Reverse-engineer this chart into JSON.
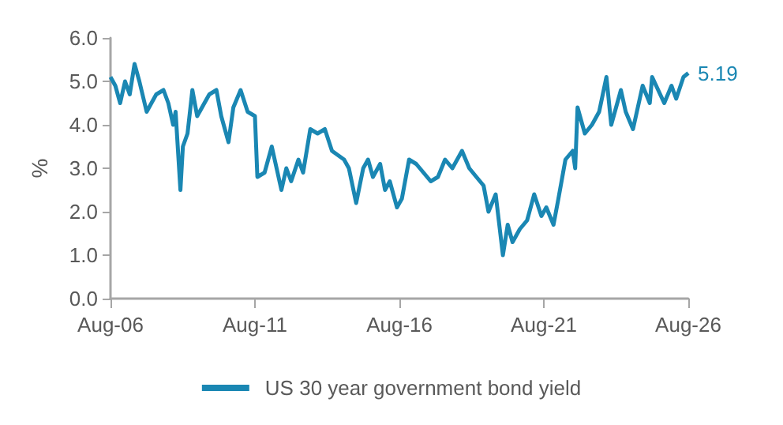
{
  "chart_data": {
    "type": "line",
    "ylabel": "%",
    "x": [
      "2006-08",
      "2006-10",
      "2006-12",
      "2007-02",
      "2007-04",
      "2007-06",
      "2007-08",
      "2007-11",
      "2008-03",
      "2008-06",
      "2008-08",
      "2008-10",
      "2008-11",
      "2009-01",
      "2009-02",
      "2009-04",
      "2009-06",
      "2009-08",
      "2009-10",
      "2010-01",
      "2010-04",
      "2010-06",
      "2010-09",
      "2010-11",
      "2011-02",
      "2011-05",
      "2011-08",
      "2011-09",
      "2011-12",
      "2012-03",
      "2012-05",
      "2012-07",
      "2012-09",
      "2012-11",
      "2013-02",
      "2013-04",
      "2013-07",
      "2013-10",
      "2014-01",
      "2014-04",
      "2014-09",
      "2014-11",
      "2015-02",
      "2015-05",
      "2015-07",
      "2015-09",
      "2015-12",
      "2016-02",
      "2016-04",
      "2016-07",
      "2016-09",
      "2016-12",
      "2017-03",
      "2017-06",
      "2017-09",
      "2017-12",
      "2018-03",
      "2018-06",
      "2018-10",
      "2019-01",
      "2019-04",
      "2019-07",
      "2019-09",
      "2019-12",
      "2020-03",
      "2020-05",
      "2020-07",
      "2020-10",
      "2021-01",
      "2021-04",
      "2021-07",
      "2021-09",
      "2021-12",
      "2022-02",
      "2022-05",
      "2022-08",
      "2022-09",
      "2022-10",
      "2023-01",
      "2023-04",
      "2023-07",
      "2023-10",
      "2023-12",
      "2024-04",
      "2024-06",
      "2024-09",
      "2025-01",
      "2025-04",
      "2025-05",
      "2025-10",
      "2026-01",
      "2026-03",
      "2026-06",
      "2026-08"
    ],
    "series": [
      {
        "name": "US 30 year government bond yield",
        "color": "#1a87b3",
        "values": [
          5.1,
          4.9,
          4.5,
          5.0,
          4.7,
          5.4,
          5.0,
          4.3,
          4.7,
          4.8,
          4.5,
          4.0,
          4.3,
          2.5,
          3.5,
          3.8,
          4.8,
          4.2,
          4.4,
          4.7,
          4.8,
          4.2,
          3.6,
          4.4,
          4.8,
          4.3,
          4.2,
          2.8,
          2.9,
          3.5,
          3.0,
          2.5,
          3.0,
          2.7,
          3.2,
          2.9,
          3.9,
          3.8,
          3.9,
          3.4,
          3.2,
          3.0,
          2.2,
          3.0,
          3.2,
          2.8,
          3.1,
          2.5,
          2.7,
          2.1,
          2.3,
          3.2,
          3.1,
          2.9,
          2.7,
          2.8,
          3.2,
          3.0,
          3.4,
          3.0,
          2.8,
          2.6,
          2.0,
          2.4,
          1.0,
          1.7,
          1.3,
          1.6,
          1.8,
          2.4,
          1.9,
          2.1,
          1.7,
          2.3,
          3.2,
          3.4,
          3.0,
          4.4,
          3.8,
          4.0,
          4.3,
          5.1,
          4.0,
          4.8,
          4.3,
          3.9,
          4.9,
          4.5,
          5.1,
          4.5,
          4.9,
          4.6,
          5.1,
          5.19
        ],
        "value_labels": [
          null,
          null,
          null,
          null,
          null,
          null,
          null,
          null,
          null,
          null,
          null,
          null,
          null,
          null,
          null,
          null,
          null,
          null,
          null,
          null,
          null,
          null,
          null,
          null,
          null,
          null,
          null,
          null,
          null,
          null,
          null,
          null,
          null,
          null,
          null,
          null,
          null,
          null,
          null,
          null,
          null,
          null,
          null,
          null,
          null,
          null,
          null,
          null,
          null,
          null,
          null,
          null,
          null,
          null,
          null,
          null,
          null,
          null,
          null,
          null,
          null,
          null,
          null,
          null,
          null,
          null,
          null,
          null,
          null,
          null,
          null,
          null,
          null,
          null,
          null,
          null,
          null,
          null,
          null,
          null,
          null,
          null,
          null,
          null,
          null,
          null,
          null,
          null,
          null,
          null,
          null,
          null,
          null,
          "5.19"
        ]
      }
    ],
    "xlim": [
      "2006-08",
      "2026-08"
    ],
    "xticks": [
      {
        "value": "2006-08",
        "label": "Aug-06"
      },
      {
        "value": "2011-08",
        "label": "Aug-11"
      },
      {
        "value": "2016-08",
        "label": "Aug-16"
      },
      {
        "value": "2021-08",
        "label": "Aug-21"
      },
      {
        "value": "2026-08",
        "label": "Aug-26"
      }
    ],
    "ylim": [
      0,
      6
    ],
    "yticks": [
      {
        "value": 0,
        "label": "0.0"
      },
      {
        "value": 1,
        "label": "1.0"
      },
      {
        "value": 2,
        "label": "2.0"
      },
      {
        "value": 3,
        "label": "3.0"
      },
      {
        "value": 4,
        "label": "4.0"
      },
      {
        "value": 5,
        "label": "5.0"
      },
      {
        "value": 6,
        "label": "6.0"
      }
    ],
    "grid": false,
    "legend": "bottom",
    "marker": "none",
    "line_style": "solid"
  }
}
